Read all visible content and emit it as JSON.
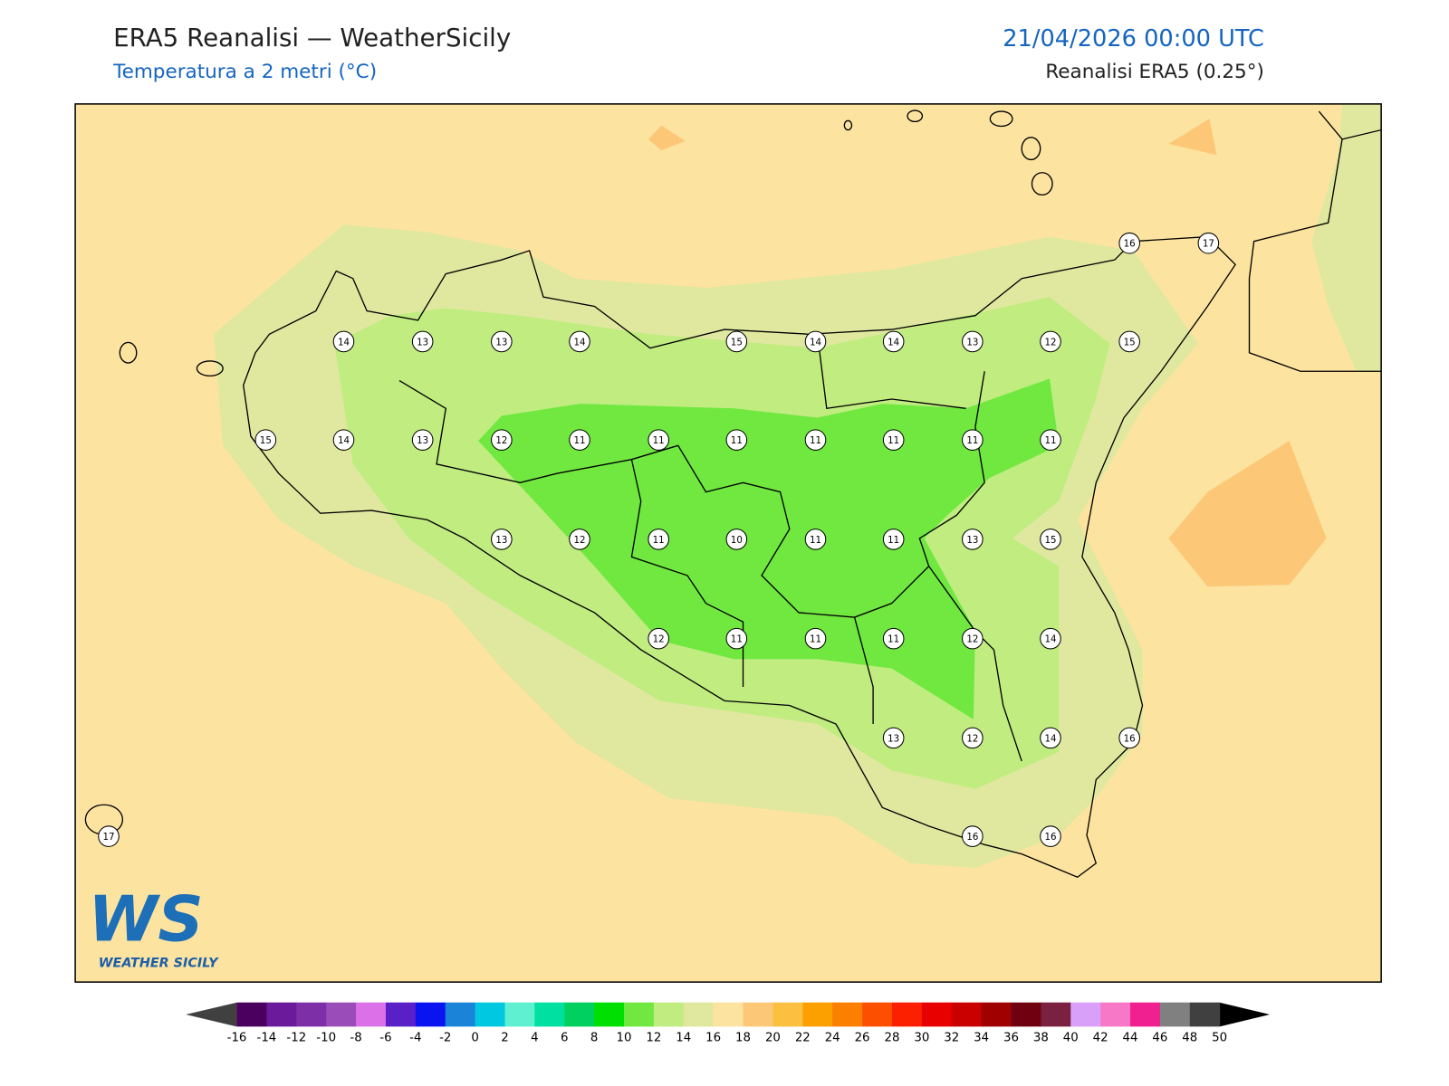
{
  "header": {
    "title": "ERA5 Reanalisi — WeatherSicily",
    "subtitle": "Temperatura a 2 metri (°C)",
    "datetime": "21/04/2026 00:00 UTC",
    "source": "Reanalisi ERA5 (0.25°)"
  },
  "stations": [
    16,
    17,
    14,
    13,
    13,
    14,
    15,
    14,
    14,
    13,
    12,
    15,
    15,
    14,
    13,
    12,
    11,
    11,
    11,
    11,
    11,
    11,
    11,
    13,
    12,
    11,
    10,
    11,
    11,
    13,
    15,
    12,
    11,
    11,
    11,
    12,
    14,
    13,
    12,
    14,
    16,
    17,
    16,
    16
  ],
  "colorbar": {
    "ticks": [
      -16,
      -14,
      -12,
      -10,
      -8,
      -6,
      -4,
      -2,
      0,
      2,
      4,
      6,
      8,
      10,
      12,
      14,
      16,
      18,
      20,
      22,
      24,
      26,
      28,
      30,
      32,
      34,
      36,
      38,
      40,
      42,
      44,
      46,
      48,
      50
    ],
    "colors": [
      "#4b0060",
      "#6a1a9a",
      "#7d2fa8",
      "#9a4cb8",
      "#dc70e8",
      "#5a20c8",
      "#0a14f0",
      "#1b84d8",
      "#00c8e0",
      "#5ef0d0",
      "#00e0a0",
      "#00d060",
      "#00e000",
      "#70e840",
      "#c0ec80",
      "#e0e8a0",
      "#fde3a0",
      "#fcc878",
      "#fcc040",
      "#fca000",
      "#fc8000",
      "#fc5000",
      "#fc2000",
      "#e80000",
      "#c80000",
      "#a00000",
      "#700010",
      "#7a2040",
      "#d8a0f8",
      "#f878c8",
      "#f02090",
      "#808080",
      "#404040"
    ]
  },
  "logo": {
    "mark": "WS",
    "text": "WEATHER SICILY"
  }
}
